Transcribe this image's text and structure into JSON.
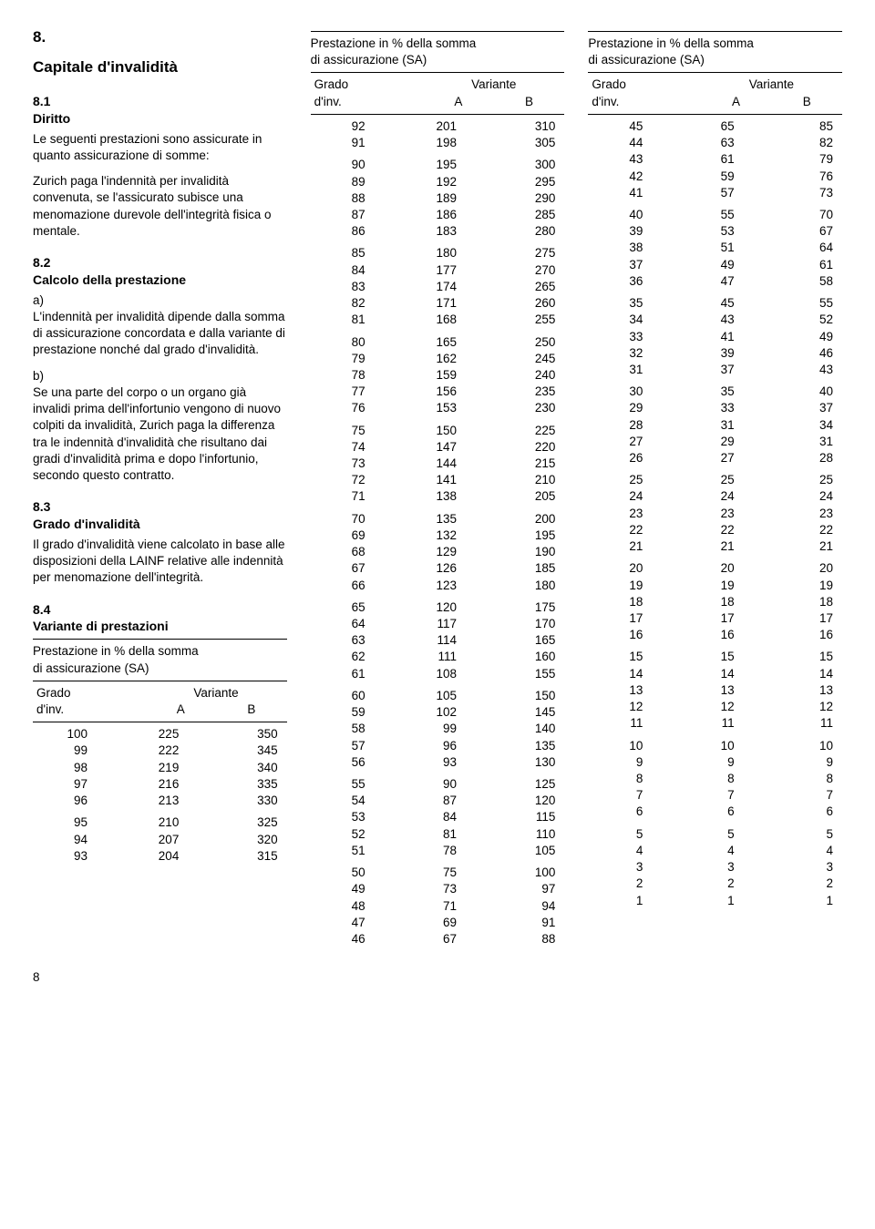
{
  "section": {
    "num": "8.",
    "title": "Capitale d'invalidità",
    "s81_num": "8.1",
    "s81_title": "Diritto",
    "s81_p1": "Le seguenti prestazioni sono assicurate in quanto assicurazione di somme:",
    "s81_p2": "Zurich paga l'indennità per invalidità convenuta, se l'assicurato subisce una menomazione durevole dell'integrità fisica o mentale.",
    "s82_num": "8.2",
    "s82_title": "Calcolo della prestazione",
    "s82_a_label": "a)",
    "s82_a": "L'indennità per invalidità dipende dalla somma di assicurazione concordata e dalla variante di prestazione nonché dal grado d'invalidità.",
    "s82_b_label": "b)",
    "s82_b": "Se una parte del corpo o un organo già invalidi prima dell'infortunio vengono di nuovo colpiti da invalidità, Zurich paga la differenza tra le indennità d'invalidità che risultano dai gradi d'invalidità prima e dopo l'infortunio, secondo questo contratto.",
    "s83_num": "8.3",
    "s83_title": "Grado d'invalidità",
    "s83_p": "Il grado d'invalidità viene calcolato in base alle disposizioni della LAINF relative alle indennità per menomazione dell'integrità.",
    "s84_num": "8.4",
    "s84_title": "Variante di prestazioni"
  },
  "table_caption": {
    "line1": "Prestazione in % della somma",
    "line2": "di assicurazione (SA)",
    "head_left": "Grado",
    "head_left2": "d'inv.",
    "head_right": "Variante",
    "colA": "A",
    "colB": "B"
  },
  "table1": {
    "groups": [
      [
        [
          100,
          225,
          350
        ],
        [
          99,
          222,
          345
        ],
        [
          98,
          219,
          340
        ],
        [
          97,
          216,
          335
        ],
        [
          96,
          213,
          330
        ]
      ],
      [
        [
          95,
          210,
          325
        ],
        [
          94,
          207,
          320
        ],
        [
          93,
          204,
          315
        ]
      ]
    ]
  },
  "table2": {
    "groups": [
      [
        [
          92,
          201,
          310
        ],
        [
          91,
          198,
          305
        ]
      ],
      [
        [
          90,
          195,
          300
        ],
        [
          89,
          192,
          295
        ],
        [
          88,
          189,
          290
        ],
        [
          87,
          186,
          285
        ],
        [
          86,
          183,
          280
        ]
      ],
      [
        [
          85,
          180,
          275
        ],
        [
          84,
          177,
          270
        ],
        [
          83,
          174,
          265
        ],
        [
          82,
          171,
          260
        ],
        [
          81,
          168,
          255
        ]
      ],
      [
        [
          80,
          165,
          250
        ],
        [
          79,
          162,
          245
        ],
        [
          78,
          159,
          240
        ],
        [
          77,
          156,
          235
        ],
        [
          76,
          153,
          230
        ]
      ],
      [
        [
          75,
          150,
          225
        ],
        [
          74,
          147,
          220
        ],
        [
          73,
          144,
          215
        ],
        [
          72,
          141,
          210
        ],
        [
          71,
          138,
          205
        ]
      ],
      [
        [
          70,
          135,
          200
        ],
        [
          69,
          132,
          195
        ],
        [
          68,
          129,
          190
        ],
        [
          67,
          126,
          185
        ],
        [
          66,
          123,
          180
        ]
      ],
      [
        [
          65,
          120,
          175
        ],
        [
          64,
          117,
          170
        ],
        [
          63,
          114,
          165
        ],
        [
          62,
          111,
          160
        ],
        [
          61,
          108,
          155
        ]
      ],
      [
        [
          60,
          105,
          150
        ],
        [
          59,
          102,
          145
        ],
        [
          58,
          99,
          140
        ],
        [
          57,
          96,
          135
        ],
        [
          56,
          93,
          130
        ]
      ],
      [
        [
          55,
          90,
          125
        ],
        [
          54,
          87,
          120
        ],
        [
          53,
          84,
          115
        ],
        [
          52,
          81,
          110
        ],
        [
          51,
          78,
          105
        ]
      ],
      [
        [
          50,
          75,
          100
        ],
        [
          49,
          73,
          97
        ],
        [
          48,
          71,
          94
        ],
        [
          47,
          69,
          91
        ],
        [
          46,
          67,
          88
        ]
      ]
    ]
  },
  "table3": {
    "groups": [
      [
        [
          45,
          65,
          85
        ],
        [
          44,
          63,
          82
        ],
        [
          43,
          61,
          79
        ],
        [
          42,
          59,
          76
        ],
        [
          41,
          57,
          73
        ]
      ],
      [
        [
          40,
          55,
          70
        ],
        [
          39,
          53,
          67
        ],
        [
          38,
          51,
          64
        ],
        [
          37,
          49,
          61
        ],
        [
          36,
          47,
          58
        ]
      ],
      [
        [
          35,
          45,
          55
        ],
        [
          34,
          43,
          52
        ],
        [
          33,
          41,
          49
        ],
        [
          32,
          39,
          46
        ],
        [
          31,
          37,
          43
        ]
      ],
      [
        [
          30,
          35,
          40
        ],
        [
          29,
          33,
          37
        ],
        [
          28,
          31,
          34
        ],
        [
          27,
          29,
          31
        ],
        [
          26,
          27,
          28
        ]
      ],
      [
        [
          25,
          25,
          25
        ],
        [
          24,
          24,
          24
        ],
        [
          23,
          23,
          23
        ],
        [
          22,
          22,
          22
        ],
        [
          21,
          21,
          21
        ]
      ],
      [
        [
          20,
          20,
          20
        ],
        [
          19,
          19,
          19
        ],
        [
          18,
          18,
          18
        ],
        [
          17,
          17,
          17
        ],
        [
          16,
          16,
          16
        ]
      ],
      [
        [
          15,
          15,
          15
        ],
        [
          14,
          14,
          14
        ],
        [
          13,
          13,
          13
        ],
        [
          12,
          12,
          12
        ],
        [
          11,
          11,
          11
        ]
      ],
      [
        [
          10,
          10,
          10
        ],
        [
          9,
          9,
          9
        ],
        [
          8,
          8,
          8
        ],
        [
          7,
          7,
          7
        ],
        [
          6,
          6,
          6
        ]
      ],
      [
        [
          5,
          5,
          5
        ],
        [
          4,
          4,
          4
        ],
        [
          3,
          3,
          3
        ],
        [
          2,
          2,
          2
        ],
        [
          1,
          1,
          1
        ]
      ]
    ]
  },
  "page_number": "8"
}
